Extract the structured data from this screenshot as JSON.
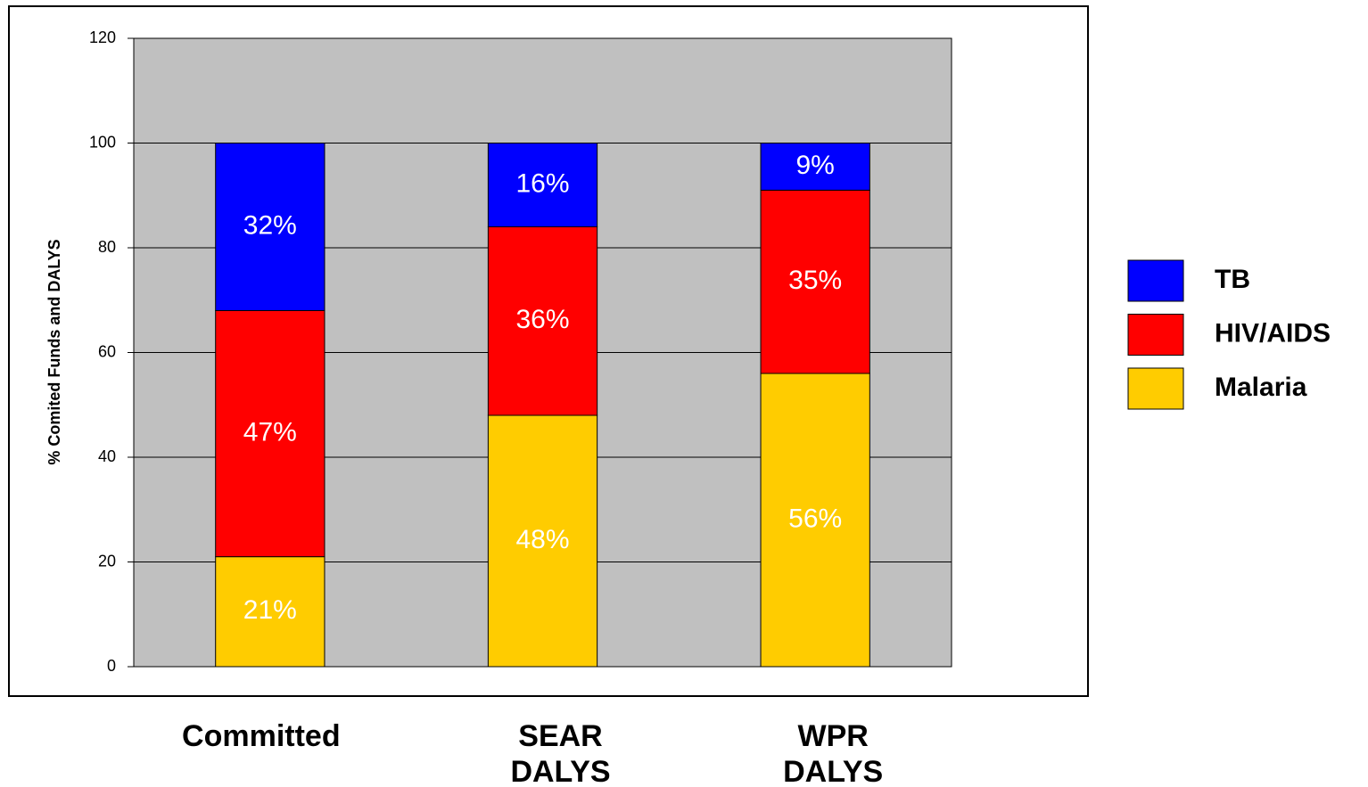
{
  "chart_data": {
    "type": "stacked_bar",
    "y_label": "% Comited Funds and DALYS",
    "categories": [
      "Committed",
      "SEAR\nDALYS",
      "WPR\nDALYS"
    ],
    "series": [
      {
        "name": "Malaria",
        "color": "#ffcc00",
        "values": [
          21,
          48,
          56
        ],
        "value_labels": [
          "21%",
          "48%",
          "56%"
        ]
      },
      {
        "name": "HIV/AIDS",
        "color": "#ff0000",
        "values": [
          47,
          36,
          35
        ],
        "value_labels": [
          "47%",
          "36%",
          "35%"
        ]
      },
      {
        "name": "TB",
        "color": "#0000ff",
        "values": [
          32,
          16,
          9
        ],
        "value_labels": [
          "32%",
          "16%",
          "9%"
        ]
      }
    ],
    "ylim": [
      0,
      120
    ],
    "yticks": [
      0,
      20,
      40,
      60,
      80,
      100,
      120
    ],
    "grid": true,
    "legend": "right"
  }
}
